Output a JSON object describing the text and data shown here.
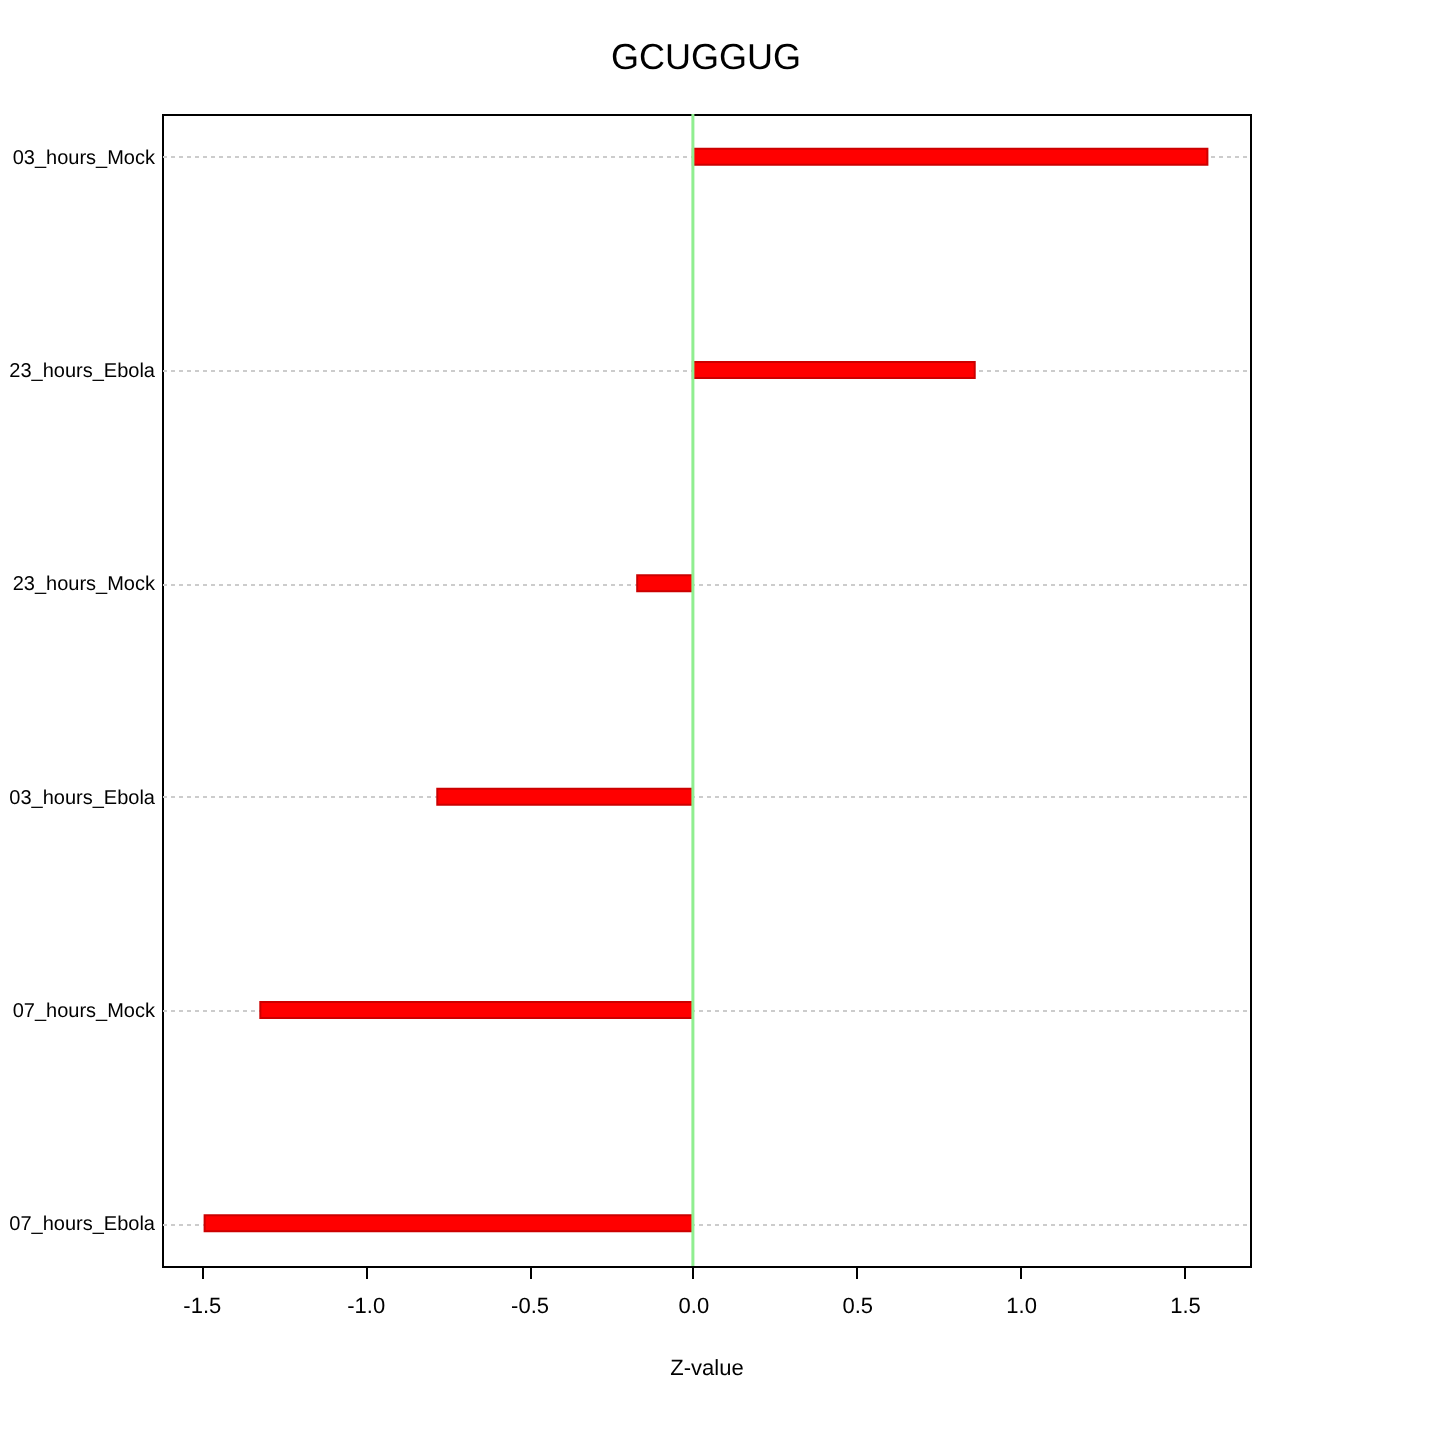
{
  "chart_data": {
    "type": "bar",
    "orientation": "horizontal",
    "title": "GCUGGUG",
    "xlabel": "Z-value",
    "categories": [
      "03_hours_Mock",
      "23_hours_Ebola",
      "23_hours_Mock",
      "03_hours_Ebola",
      "07_hours_Mock",
      "07_hours_Ebola"
    ],
    "values": [
      1.57,
      0.86,
      -0.17,
      -0.78,
      -1.32,
      -1.49
    ],
    "color": "#ff0000",
    "xlim": [
      -1.62,
      1.7
    ],
    "xticks": [
      -1.5,
      {
        "value": -1,
        "label": "-1.0"
      },
      -0.5,
      {
        "value": 0,
        "label": "0.0"
      },
      0.5,
      {
        "value": 1,
        "label": "1.0"
      },
      1.5
    ],
    "grid": "y",
    "ref_lines": [
      {
        "axis": "x",
        "value": 0,
        "color": "#90ee90"
      }
    ]
  }
}
